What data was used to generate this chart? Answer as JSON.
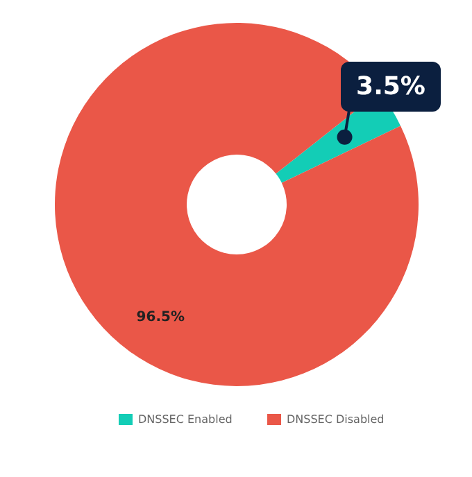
{
  "chart_data": {
    "type": "donut",
    "categories": [
      "DNSSEC Enabled",
      "DNSSEC Disabled"
    ],
    "values": [
      3.5,
      96.5
    ],
    "colors": [
      "#13cdb6",
      "#ea5748"
    ],
    "value_labels": [
      "3.5%",
      "96.5%"
    ],
    "legend": "bottom"
  }
}
